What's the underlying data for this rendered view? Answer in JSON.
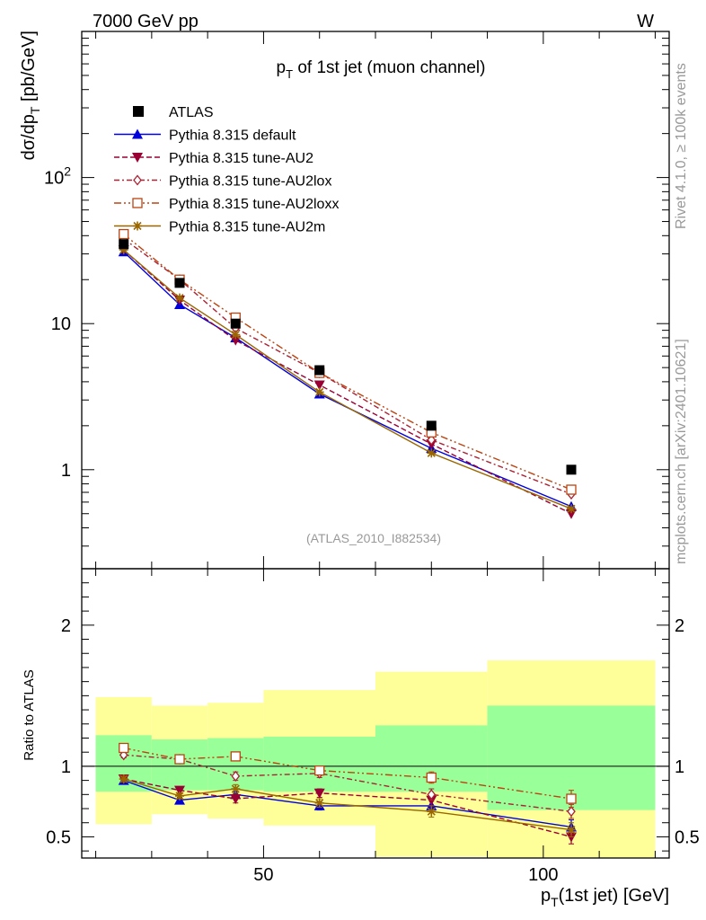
{
  "header": {
    "energy_label": "7000 GeV pp",
    "process_label": "W"
  },
  "side": {
    "rivet_label": "Rivet 4.1.0, ≥ 100k events",
    "mcplots_label": "mcplots.cern.ch [arXiv:2401.10621]"
  },
  "chart_data": {
    "type": "line",
    "title": "p_T of 1st jet (muon channel)",
    "watermark": "(ATLAS_2010_I882534)",
    "xlabel": "p_T(1st jet) [GeV]",
    "ylabel": "dσ/dp_T [pb/GeV]",
    "ratio_ylabel": "Ratio to ATLAS",
    "xlim": [
      17.5,
      122.5
    ],
    "ylim": [
      0.21,
      1000
    ],
    "ratio_ylim": [
      0.35,
      2.4
    ],
    "yscale": "log",
    "x_ticks": [
      {
        "value": 50,
        "label": "50"
      },
      {
        "value": 100,
        "label": "100"
      }
    ],
    "y_ticks": [
      {
        "value": 1,
        "label": "1"
      },
      {
        "value": 10,
        "label": "10"
      },
      {
        "value": 100,
        "label": "10",
        "sup": "2"
      }
    ],
    "ratio_ticks": [
      {
        "value": 0.5,
        "label": "0.5"
      },
      {
        "value": 1,
        "label": "1"
      },
      {
        "value": 2,
        "label": "2"
      }
    ],
    "bins": [
      [
        20,
        30
      ],
      [
        30,
        40
      ],
      [
        40,
        50
      ],
      [
        50,
        70
      ],
      [
        70,
        90
      ],
      [
        90,
        120
      ]
    ],
    "x": [
      25,
      35,
      45,
      60,
      80,
      105
    ],
    "data": {
      "name": "ATLAS",
      "values": [
        35,
        19,
        10,
        4.8,
        2.0,
        1.0
      ],
      "band_inner": [
        [
          0.82,
          1.22
        ],
        [
          0.83,
          1.19
        ],
        [
          0.83,
          1.2
        ],
        [
          0.82,
          1.21
        ],
        [
          0.82,
          1.29
        ],
        [
          0.69,
          1.43
        ]
      ],
      "band_outer": [
        [
          0.59,
          1.49
        ],
        [
          0.66,
          1.43
        ],
        [
          0.63,
          1.45
        ],
        [
          0.58,
          1.54
        ],
        [
          0.36,
          1.67
        ],
        [
          0.35,
          1.75
        ]
      ]
    },
    "series": [
      {
        "name": "Pythia 8.315 default",
        "color": "#0000dd",
        "dash": "",
        "marker": "triangle-up",
        "values": [
          31,
          13.5,
          8.0,
          3.3,
          1.4,
          0.56
        ],
        "ratio": [
          0.9,
          0.76,
          0.8,
          0.72,
          0.72,
          0.57
        ],
        "ratio_err": [
          0.02,
          0.02,
          0.02,
          0.03,
          0.04,
          0.05
        ]
      },
      {
        "name": "Pythia 8.315 tune-AU2",
        "color": "#990033",
        "dash": "6,3",
        "marker": "triangle-down",
        "values": [
          32,
          14.5,
          7.7,
          3.8,
          1.5,
          0.5
        ],
        "ratio": [
          0.91,
          0.83,
          0.77,
          0.81,
          0.76,
          0.5
        ],
        "ratio_err": [
          0.02,
          0.02,
          0.03,
          0.03,
          0.04,
          0.05
        ]
      },
      {
        "name": "Pythia 8.315 tune-AU2lox",
        "color": "#aa2233",
        "dash": "6,3,2,3",
        "marker": "diamond-open",
        "values": [
          38,
          20,
          9.3,
          4.6,
          1.6,
          0.68
        ],
        "ratio": [
          1.08,
          1.05,
          0.93,
          0.95,
          0.8,
          0.68
        ],
        "ratio_err": [
          0.02,
          0.02,
          0.03,
          0.03,
          0.04,
          0.05
        ]
      },
      {
        "name": "Pythia 8.315 tune-AU2loxx",
        "color": "#bb4411",
        "dash": "8,3,2,3,2,3",
        "marker": "square-open",
        "values": [
          41,
          20,
          11,
          4.6,
          1.8,
          0.73
        ],
        "ratio": [
          1.13,
          1.05,
          1.07,
          0.97,
          0.92,
          0.77
        ],
        "ratio_err": [
          0.02,
          0.02,
          0.03,
          0.03,
          0.04,
          0.06
        ]
      },
      {
        "name": "Pythia 8.315 tune-AU2m",
        "color": "#996600",
        "dash": "",
        "marker": "star",
        "values": [
          32,
          15,
          8.4,
          3.4,
          1.3,
          0.54
        ],
        "ratio": [
          0.91,
          0.79,
          0.84,
          0.74,
          0.68,
          0.55
        ],
        "ratio_err": [
          0.02,
          0.02,
          0.03,
          0.03,
          0.04,
          0.05
        ]
      }
    ]
  }
}
